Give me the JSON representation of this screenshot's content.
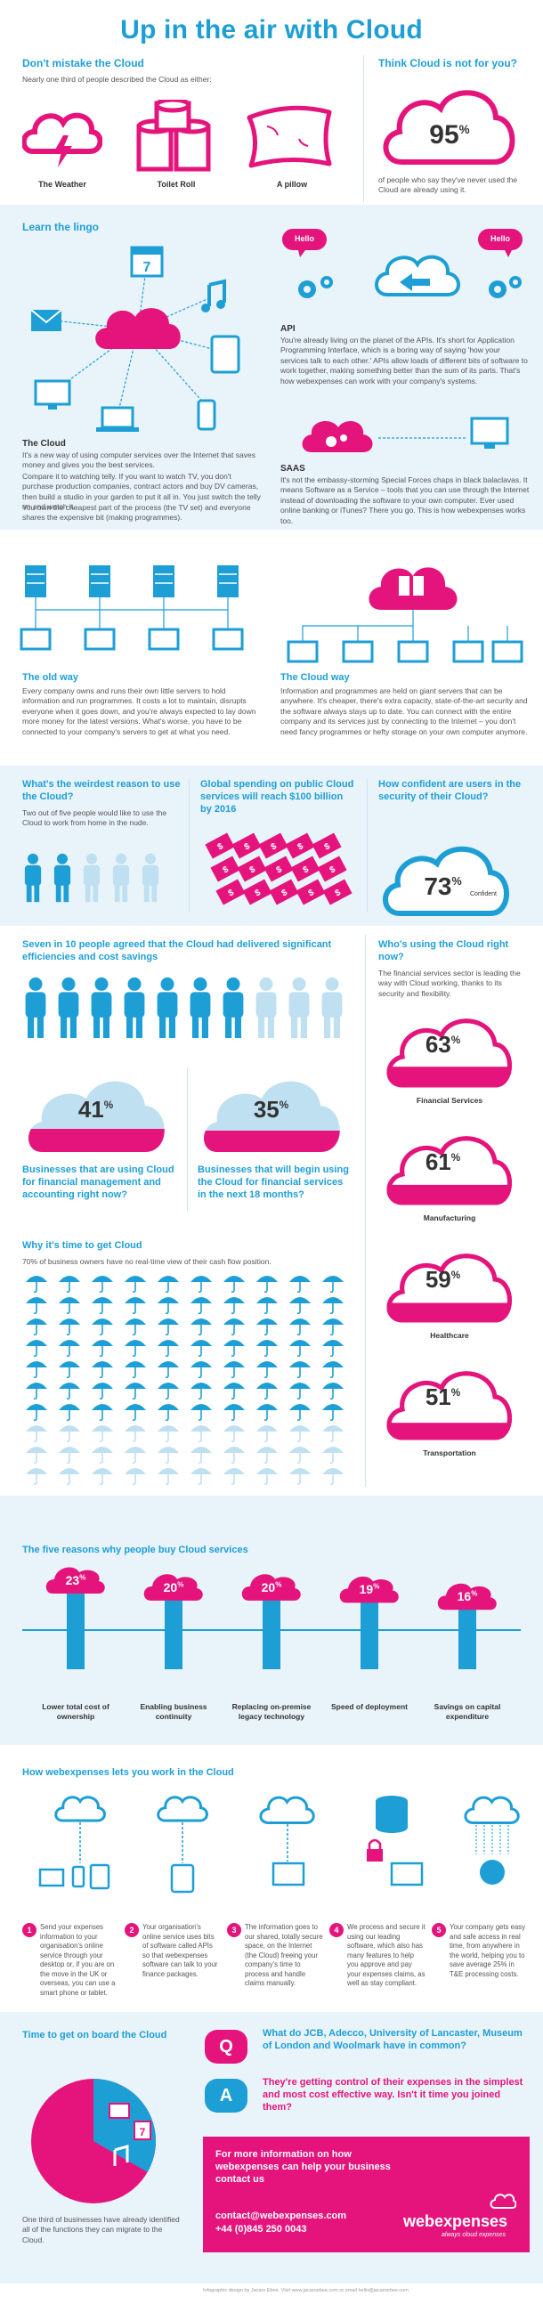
{
  "title": "Up in the air with Cloud",
  "dont_mistake": {
    "heading": "Don't mistake the Cloud",
    "intro": "Nearly one third of people described the Cloud as either:",
    "items": [
      "The Weather",
      "Toilet Roll",
      "A pillow"
    ]
  },
  "think_cloud": {
    "heading": "Think Cloud is not for you?",
    "value": "95",
    "unit": "%",
    "caption": "of people who say they've never used the Cloud are already using it."
  },
  "lingo": {
    "heading": "Learn the lingo",
    "hello": "Hello",
    "api_title": "API",
    "api_text": "You're already living on the planet of the APIs. It's short for Application Programming Interface, which is a boring way of saying 'how your services talk to each other.' APIs allow loads of different bits of software to work together, making something better than the sum of its parts. That's how webexpenses can work with your company's systems.",
    "cloud_title": "The Cloud",
    "cloud_text1": "It's a new way of using computer services over the Internet that saves money and gives you the best services.",
    "cloud_text2": "Compare it to watching telly. If you want to watch TV, you don't purchase production companies, contract actors and buy DV cameras, then build a studio in your garden to put it all in. You just switch the telly on and watch it.",
    "cloud_text3": "You own the cheapest part of the process (the TV set) and everyone shares the expensive bit (making programmes).",
    "saas_title": "SAAS",
    "saas_text": "It's not the embassy-storming Special Forces chaps in black balaclavas. It means Software as a Service – tools that you can use through the Internet instead of downloading the software to your own computer. Ever used online banking or iTunes? There you go. This is how webexpenses works too.",
    "calendar_day": "7"
  },
  "old_way": {
    "title": "The old way",
    "text": "Every company owns and runs their own little servers to hold information and run programmes. It costs a lot to maintain, disrupts everyone when it goes down, and you're always expected to lay down more money for the latest versions. What's worse, you have to be connected to your company's servers to get at what you need."
  },
  "cloud_way": {
    "title": "The Cloud way",
    "text": "Information and programmes are held on giant servers that can be anywhere. It's cheaper, there's extra capacity, state-of-the-art security and the software always stays up to date. You can connect with the entire company and its services just by connecting to the Internet – you don't need fancy programmes or hefty storage on your own computer anymore."
  },
  "weirdest": {
    "heading": "What's the weirdest reason to use the Cloud?",
    "text": "Two out of five people would like to use the Cloud to work from home in the nude.",
    "people_highlighted": 2,
    "people_total": 5
  },
  "spending": {
    "heading": "Global spending on public Cloud services will reach $100 billion by 2016",
    "note_symbol": "$"
  },
  "security": {
    "heading": "How confident are users in the security of their Cloud?",
    "value": "73",
    "unit": "%",
    "label": "Confident"
  },
  "seven_in_ten": {
    "heading": "Seven in 10 people agreed that the Cloud had delivered significant efficiencies and cost savings",
    "people_highlighted": 7,
    "people_total": 10
  },
  "stat41": {
    "value": "41",
    "unit": "%",
    "text": "Businesses that are using Cloud for financial management and accounting right now?"
  },
  "stat35": {
    "value": "35",
    "unit": "%",
    "text": "Businesses that will begin using the Cloud for financial services in the next 18 months?"
  },
  "who_using": {
    "heading": "Who's using the Cloud right now?",
    "text": "The financial services sector is leading the way with Cloud working, thanks to its security and flexibility.",
    "sectors": [
      {
        "value": "63",
        "unit": "%",
        "label": "Financial Services",
        "fill": 0.63
      },
      {
        "value": "61",
        "unit": "%",
        "label": "Manufacturing",
        "fill": 0.61
      },
      {
        "value": "59",
        "unit": "%",
        "label": "Healthcare",
        "fill": 0.59
      },
      {
        "value": "51",
        "unit": "%",
        "label": "Transportation",
        "fill": 0.51
      }
    ]
  },
  "time_to_get": {
    "heading": "Why it's time to get Cloud",
    "text": "70% of business owners have no real-time view of their cash flow position.",
    "umbrella_rows": 10,
    "umbrella_cols": 10,
    "umbrella_highlight_rows": 7
  },
  "five_reasons": {
    "heading": "The five reasons why people buy Cloud services",
    "items": [
      {
        "value": "23",
        "unit": "%",
        "label": "Lower total cost of ownership"
      },
      {
        "value": "20",
        "unit": "%",
        "label": "Enabling business continuity"
      },
      {
        "value": "20",
        "unit": "%",
        "label": "Replacing on-premise legacy technology"
      },
      {
        "value": "19",
        "unit": "%",
        "label": "Speed of deployment"
      },
      {
        "value": "16",
        "unit": "%",
        "label": "Savings on capital expenditure"
      }
    ]
  },
  "how_works": {
    "heading": "How webexpenses lets you work in the Cloud",
    "steps": [
      {
        "n": "1",
        "text": "Send your expenses information to your organisation's online service through your desktop or, if you are on the move in the UK or overseas, you can use a smart phone or tablet."
      },
      {
        "n": "2",
        "text": "Your organisation's online service uses bits of software called APIs so that webexpenses software can talk to your finance packages."
      },
      {
        "n": "3",
        "text": "The information goes to our shared, totally secure space, on the Internet (the Cloud) freeing your company's time to process and handle claims manually."
      },
      {
        "n": "4",
        "text": "We process and secure it using our leading software, which also has many features to help you approve and pay your expenses claims, as well as stay compliant."
      },
      {
        "n": "5",
        "text": "Your company gets easy and safe access in real time, from anywhere in the world, helping you to save average 25% in T&E processing costs."
      }
    ]
  },
  "board": {
    "heading": "Time to get on board the Cloud",
    "text": "One third of businesses have already identified all of the functions they can migrate to the Cloud.",
    "share": 0.333
  },
  "qa": {
    "q_label": "Q",
    "q_text": "What do JCB, Adecco, University of Lancaster, Museum of London and Woolmark have in common?",
    "a_label": "A",
    "a_text": "They're getting control of their expenses in the simplest and most cost effective way. Isn't it time you joined them?"
  },
  "cta": {
    "text": "For more information on how webexpenses can help your business contact us",
    "email": "contact@webexpenses.com",
    "phone": "+44 (0)845 250 0043",
    "brand": "webexpenses",
    "tagline": "always cloud expenses"
  },
  "footer": "Infographic design by Jacaro Ebee. Visit www.jacaroebee.com or email hello@jacaroebee.com",
  "colors": {
    "blue": "#1d9fd6",
    "pink": "#e5147d",
    "light": "#e9f3fa",
    "pale_blue": "#bfe0f1"
  }
}
